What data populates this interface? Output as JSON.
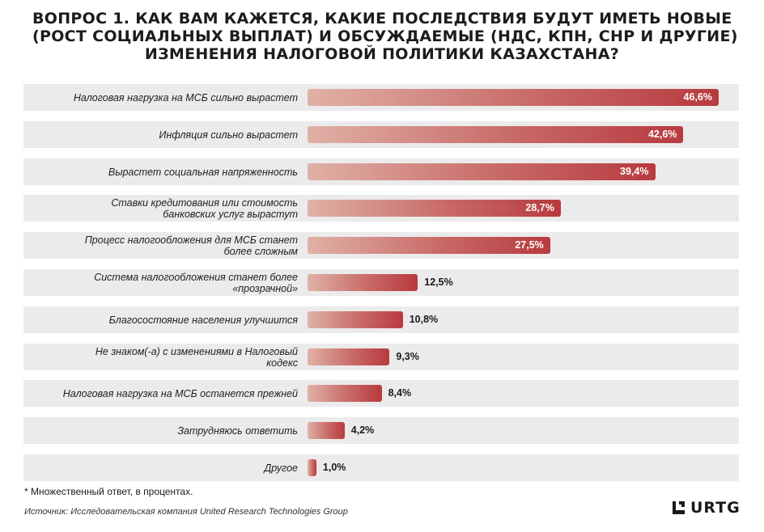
{
  "title_lines": [
    "ВОПРОС 1. КАК ВАМ КАЖЕТСЯ, КАКИЕ ПОСЛЕДСТВИЯ БУДУТ ИМЕТЬ НОВЫЕ",
    "(РОСТ СОЦИАЛЬНЫХ ВЫПЛАТ) И ОБСУЖДАЕМЫЕ (НДС, КПН, СНР И ДРУГИЕ)",
    "ИЗМЕНЕНИЯ НАЛОГОВОЙ ПОЛИТИКИ КАЗАХСТАНА?"
  ],
  "note": "* Множественный ответ, в процентах.",
  "source": "Источник: Исследовательская компания United Research Technologies Group",
  "logo_text": "URTG",
  "colors": {
    "bar_start": "#e0b1a6",
    "bar_end": "#b83a3e",
    "row_background": "#ebebeb"
  },
  "chart_data": {
    "type": "bar",
    "orientation": "horizontal",
    "title": "ВОПРОС 1. КАК ВАМ КАЖЕТСЯ, КАКИЕ ПОСЛЕДСТВИЯ БУДУТ ИМЕТЬ НОВЫЕ (РОСТ СОЦИАЛЬНЫХ ВЫПЛАТ) И ОБСУЖДАЕМЫЕ (НДС, КПН, СНР И ДРУГИЕ) ИЗМЕНЕНИЯ НАЛОГОВОЙ ПОЛИТИКИ КАЗАХСТАНА?",
    "categories": [
      "Налоговая нагрузка на МСБ сильно вырастет",
      "Инфляция сильно вырастет",
      "Вырастет социальная напряженность",
      "Ставки кредитования или стоимость банковских услуг вырастут",
      "Процесс налогообложения для МСБ станет более сложным",
      "Система налогообложения станет более «прозрачной»",
      "Благосостояние населения улучшится",
      "Не знаком(-а) с изменениями в Налоговый кодекс",
      "Налоговая нагрузка на МСБ останется прежней",
      "Затрудняюсь ответить",
      "Другое"
    ],
    "category_lines": [
      [
        "Налоговая нагрузка на МСБ сильно вырастет"
      ],
      [
        "Инфляция сильно вырастет"
      ],
      [
        "Вырастет социальная напряженность"
      ],
      [
        "Ставки кредитования или стоимость",
        "банковских услуг вырастут"
      ],
      [
        "Процесс налогообложения для МСБ станет",
        "более сложным"
      ],
      [
        "Система налогообложения станет более",
        "«прозрачной»"
      ],
      [
        "Благосостояние населения улучшится"
      ],
      [
        "Не знаком(-а) с изменениями в Налоговый",
        "кодекс"
      ],
      [
        "Налоговая нагрузка на МСБ останется прежней"
      ],
      [
        "Затрудняюсь ответить"
      ],
      [
        "Другое"
      ]
    ],
    "values": [
      46.6,
      42.6,
      39.4,
      28.7,
      27.5,
      12.5,
      10.8,
      9.3,
      8.4,
      4.2,
      1.0
    ],
    "value_labels": [
      "46,6%",
      "42,6%",
      "39,4%",
      "28,7%",
      "27,5%",
      "12,5%",
      "10,8%",
      "9,3%",
      "8,4%",
      "4,2%",
      "1,0%"
    ],
    "unit": "%",
    "xlim": [
      0,
      50
    ],
    "grid": false,
    "legend": "none"
  }
}
